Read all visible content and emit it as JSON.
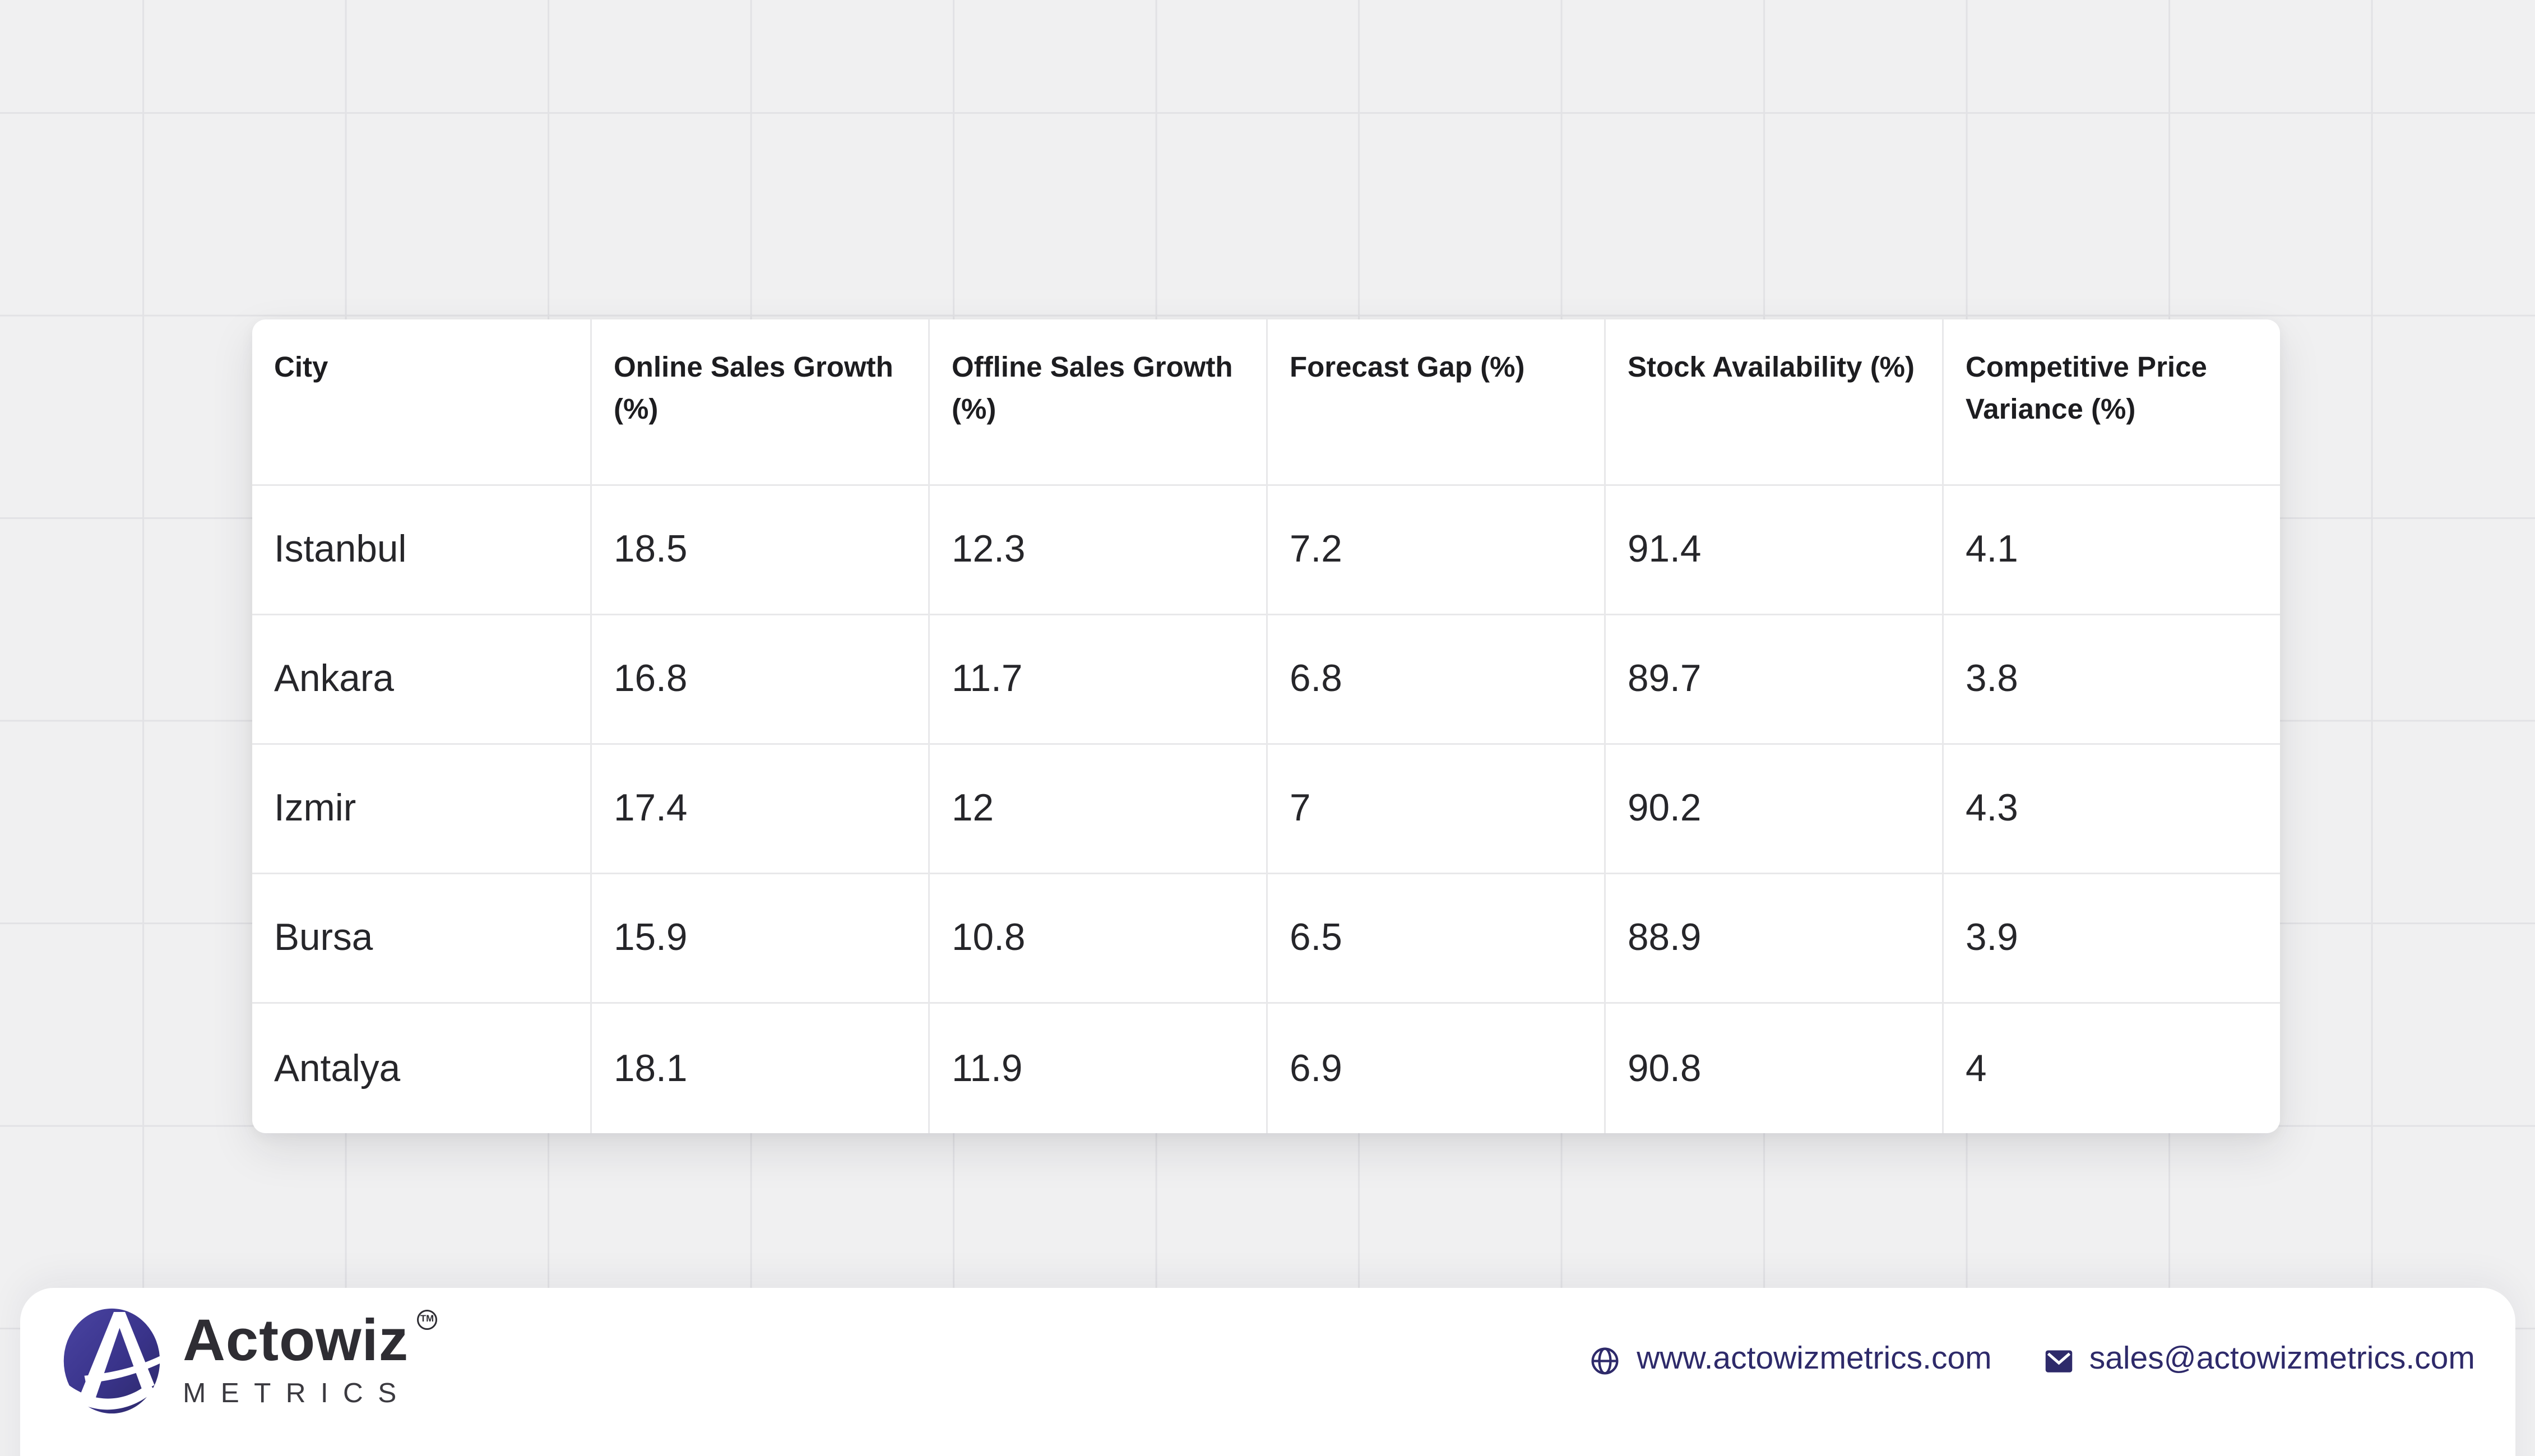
{
  "page": {
    "background_color": "#f0f0f1",
    "grid_line_color": "#e2e2e5",
    "card_color": "#ffffff"
  },
  "table": {
    "header": [
      "City",
      "Online Sales Growth (%)",
      "Offline Sales Growth (%)",
      "Forecast Gap (%)",
      "Stock Availability (%)",
      "Competitive Price Variance (%)"
    ],
    "rows": [
      [
        "Istanbul",
        "18.5",
        "12.3",
        "7.2",
        "91.4",
        "4.1"
      ],
      [
        "Ankara",
        "16.8",
        "11.7",
        "6.8",
        "89.7",
        "3.8"
      ],
      [
        "Izmir",
        "17.4",
        "12",
        "7",
        "90.2",
        "4.3"
      ],
      [
        "Bursa",
        "15.9",
        "10.8",
        "6.5",
        "88.9",
        "3.9"
      ],
      [
        "Antalya",
        "18.1",
        "11.9",
        "6.9",
        "90.8",
        "4"
      ]
    ]
  },
  "chart_data": {
    "type": "table",
    "title": "",
    "columns": [
      "City",
      "Online Sales Growth (%)",
      "Offline Sales Growth (%)",
      "Forecast Gap (%)",
      "Stock Availability (%)",
      "Competitive Price Variance (%)"
    ],
    "rows": [
      [
        "Istanbul",
        18.5,
        12.3,
        7.2,
        91.4,
        4.1
      ],
      [
        "Ankara",
        16.8,
        11.7,
        6.8,
        89.7,
        3.8
      ],
      [
        "Izmir",
        17.4,
        12.0,
        7.0,
        90.2,
        4.3
      ],
      [
        "Bursa",
        15.9,
        10.8,
        6.5,
        88.9,
        3.9
      ],
      [
        "Antalya",
        18.1,
        11.9,
        6.9,
        90.8,
        4.0
      ]
    ]
  },
  "footer": {
    "brand_name": "Actowiz",
    "brand_subtitle": "METRICS",
    "trademark": "TM",
    "website": "www.actowizmetrics.com",
    "email": "sales@actowizmetrics.com",
    "accent_color": "#2e2a6a",
    "logo_color": "#39338a"
  }
}
